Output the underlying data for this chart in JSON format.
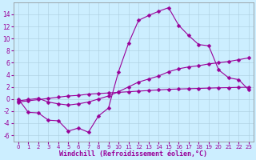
{
  "background_color": "#cceeff",
  "grid_color": "#aaccdd",
  "line_color": "#990099",
  "marker": "D",
  "marker_size": 2.5,
  "line_width": 0.8,
  "xlabel": "Windchill (Refroidissement éolien,°C)",
  "xlabel_fontsize": 6,
  "xtick_fontsize": 5,
  "ytick_fontsize": 5.5,
  "xlim": [
    -0.5,
    23.5
  ],
  "ylim": [
    -7,
    16
  ],
  "yticks": [
    -6,
    -4,
    -2,
    0,
    2,
    4,
    6,
    8,
    10,
    12,
    14
  ],
  "xticks": [
    0,
    1,
    2,
    3,
    4,
    5,
    6,
    7,
    8,
    9,
    10,
    11,
    12,
    13,
    14,
    15,
    16,
    17,
    18,
    19,
    20,
    21,
    22,
    23
  ],
  "series1_x": [
    0,
    1,
    2,
    3,
    4,
    5,
    6,
    7,
    8,
    9,
    10,
    11,
    12,
    13,
    14,
    15,
    16,
    17,
    18,
    19,
    20,
    21,
    22,
    23
  ],
  "series1_y": [
    0,
    -2.2,
    -2.3,
    -3.5,
    -3.6,
    -5.3,
    -4.8,
    -5.5,
    -2.8,
    -1.5,
    4.5,
    9.2,
    13.0,
    13.8,
    14.5,
    15.1,
    12.2,
    10.5,
    9.0,
    8.8,
    4.8,
    3.5,
    3.2,
    1.5
  ],
  "series2_x": [
    0,
    1,
    2,
    3,
    4,
    5,
    6,
    7,
    8,
    9,
    10,
    11,
    12,
    13,
    14,
    15,
    16,
    17,
    18,
    19,
    20,
    21,
    22,
    23
  ],
  "series2_y": [
    -0.3,
    -0.1,
    0.1,
    -0.5,
    -0.8,
    -1.0,
    -0.8,
    -0.5,
    0.0,
    0.5,
    1.2,
    2.0,
    2.8,
    3.3,
    3.8,
    4.5,
    5.0,
    5.3,
    5.5,
    5.8,
    6.0,
    6.2,
    6.5,
    6.8
  ],
  "series3_x": [
    0,
    1,
    2,
    3,
    4,
    5,
    6,
    7,
    8,
    9,
    10,
    11,
    12,
    13,
    14,
    15,
    16,
    17,
    18,
    19,
    20,
    21,
    22,
    23
  ],
  "series3_y": [
    -0.5,
    -0.3,
    -0.1,
    0.1,
    0.3,
    0.5,
    0.6,
    0.8,
    0.9,
    1.0,
    1.1,
    1.2,
    1.3,
    1.4,
    1.5,
    1.6,
    1.65,
    1.7,
    1.75,
    1.8,
    1.85,
    1.88,
    1.92,
    1.95
  ]
}
